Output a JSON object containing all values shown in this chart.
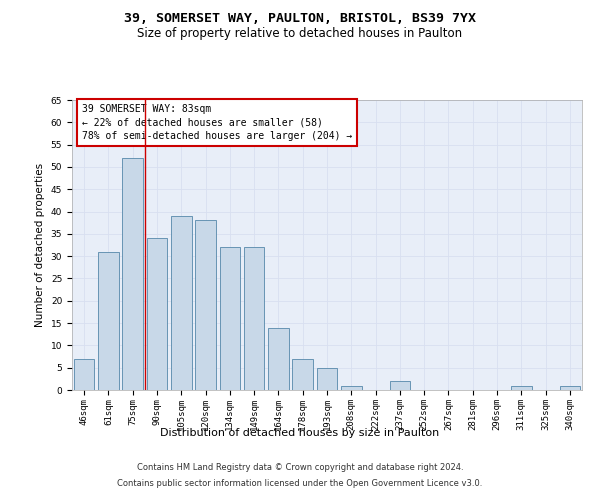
{
  "title1": "39, SOMERSET WAY, PAULTON, BRISTOL, BS39 7YX",
  "title2": "Size of property relative to detached houses in Paulton",
  "xlabel": "Distribution of detached houses by size in Paulton",
  "ylabel": "Number of detached properties",
  "categories": [
    "46sqm",
    "61sqm",
    "75sqm",
    "90sqm",
    "105sqm",
    "120sqm",
    "134sqm",
    "149sqm",
    "164sqm",
    "178sqm",
    "193sqm",
    "208sqm",
    "222sqm",
    "237sqm",
    "252sqm",
    "267sqm",
    "281sqm",
    "296sqm",
    "311sqm",
    "325sqm",
    "340sqm"
  ],
  "values": [
    7,
    31,
    52,
    34,
    39,
    38,
    32,
    32,
    14,
    7,
    5,
    1,
    0,
    2,
    0,
    0,
    0,
    0,
    1,
    0,
    1
  ],
  "bar_color": "#c8d8e8",
  "bar_edge_color": "#5588aa",
  "vline_x": 2.5,
  "vline_color": "#cc0000",
  "annotation_box_text": "39 SOMERSET WAY: 83sqm\n← 22% of detached houses are smaller (58)\n78% of semi-detached houses are larger (204) →",
  "box_edge_color": "#cc0000",
  "ylim": [
    0,
    65
  ],
  "yticks": [
    0,
    5,
    10,
    15,
    20,
    25,
    30,
    35,
    40,
    45,
    50,
    55,
    60,
    65
  ],
  "grid_color": "#d8dff0",
  "bg_color": "#e8eef8",
  "footer_line1": "Contains HM Land Registry data © Crown copyright and database right 2024.",
  "footer_line2": "Contains public sector information licensed under the Open Government Licence v3.0.",
  "title1_fontsize": 9.5,
  "title2_fontsize": 8.5,
  "xlabel_fontsize": 8,
  "ylabel_fontsize": 7.5,
  "tick_fontsize": 6.5,
  "annotation_fontsize": 7,
  "footer_fontsize": 6
}
